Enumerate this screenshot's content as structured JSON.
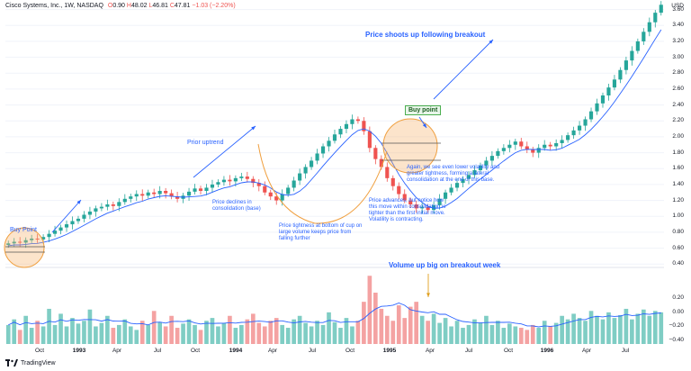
{
  "header": {
    "title": "Cisco Systems, Inc., 1W, NASDAQ",
    "open_label": "O",
    "open": "0.90",
    "high_label": "H",
    "high": "48.02",
    "low_label": "L",
    "low": "46.81",
    "close_label": "C",
    "close": "47.81",
    "change": "−1.03 (−2.20%)"
  },
  "brand": "TradingView",
  "currency": "USD",
  "price_axis": [
    "3.60",
    "3.40",
    "3.20",
    "3.00",
    "2.80",
    "2.60",
    "2.40",
    "2.20",
    "2.00",
    "1.80",
    "1.60",
    "1.40",
    "1.20",
    "1.00",
    "0.80",
    "0.60",
    "0.40"
  ],
  "volume_axis": [
    "0.20",
    "0.00",
    "−0.20",
    "−0.40"
  ],
  "time_axis": [
    {
      "label": "Oct",
      "bold": false
    },
    {
      "label": "1993",
      "bold": true
    },
    {
      "label": "Apr",
      "bold": false
    },
    {
      "label": "Jul",
      "bold": false
    },
    {
      "label": "Oct",
      "bold": false
    },
    {
      "label": "1994",
      "bold": true
    },
    {
      "label": "Apr",
      "bold": false
    },
    {
      "label": "Jul",
      "bold": false
    },
    {
      "label": "Oct",
      "bold": false
    },
    {
      "label": "1995",
      "bold": true
    },
    {
      "label": "Apr",
      "bold": false
    },
    {
      "label": "Jul",
      "bold": false
    },
    {
      "label": "Oct",
      "bold": false
    },
    {
      "label": "1996",
      "bold": true
    },
    {
      "label": "Apr",
      "bold": false
    },
    {
      "label": "Jul",
      "bold": false
    }
  ],
  "annotations": {
    "buy_point_1": "Buy Point",
    "buy_point_2": "Buy point",
    "prior_uptrend": "Prior uptrend",
    "price_declines": "Price declines in consolidation (base)",
    "cup_bottom": "Price tightness at bottom of cup on large volume keeps price from falling further",
    "price_advances": "Price advances, but notice how this move within consolidation is tighter than the first initial move. Volatility is contracting.",
    "again": "Again, we see even lower volatility and greater tightness, forming a lateral consolidation at the end of this base.",
    "shoots_up": "Price shoots up following breakout",
    "volume_up": "Volume up big on breakout week"
  },
  "colors": {
    "up": "#26a69a",
    "down": "#ef5350",
    "vol_up": "#7fcdc4",
    "vol_down": "#f4a2a2",
    "ma": "#2962ff",
    "accent": "#2962ff",
    "circle": "#f7b26b",
    "cup": "#f0a040",
    "arrow_vol": "#e0a020"
  },
  "chart_data": {
    "type": "candlestick",
    "title": "Cisco Systems, Inc., 1W, NASDAQ",
    "ylabel": "USD",
    "ylim": [
      0.38,
      3.72
    ],
    "volume_ylim": [
      -0.45,
      0.6
    ],
    "period_labels": [
      "Oct",
      "1993",
      "Apr",
      "Jul",
      "Oct",
      "1994",
      "Apr",
      "Jul",
      "Oct",
      "1995",
      "Apr",
      "Jul",
      "Oct",
      "1996",
      "Apr",
      "Jul"
    ],
    "close": [
      0.66,
      0.68,
      0.67,
      0.7,
      0.72,
      0.71,
      0.74,
      0.78,
      0.82,
      0.86,
      0.9,
      0.94,
      0.97,
      1.02,
      1.06,
      1.1,
      1.12,
      1.15,
      1.13,
      1.18,
      1.22,
      1.25,
      1.28,
      1.26,
      1.3,
      1.28,
      1.32,
      1.29,
      1.25,
      1.22,
      1.26,
      1.31,
      1.35,
      1.32,
      1.36,
      1.4,
      1.43,
      1.46,
      1.44,
      1.48,
      1.5,
      1.47,
      1.42,
      1.38,
      1.3,
      1.25,
      1.2,
      1.28,
      1.36,
      1.45,
      1.54,
      1.62,
      1.7,
      1.79,
      1.88,
      1.95,
      2.03,
      2.1,
      2.16,
      2.22,
      2.2,
      2.07,
      1.86,
      1.72,
      1.62,
      1.48,
      1.38,
      1.28,
      1.2,
      1.15,
      1.1,
      1.12,
      1.08,
      1.14,
      1.22,
      1.3,
      1.36,
      1.42,
      1.47,
      1.52,
      1.58,
      1.64,
      1.7,
      1.76,
      1.82,
      1.86,
      1.9,
      1.94,
      1.88,
      1.84,
      1.8,
      1.86,
      1.9,
      1.88,
      1.92,
      1.96,
      2.02,
      2.08,
      2.14,
      2.22,
      2.32,
      2.42,
      2.52,
      2.62,
      2.72,
      2.84,
      2.96,
      3.08,
      3.2,
      3.32,
      3.44,
      3.56,
      3.66
    ],
    "volume": [
      -0.18,
      -0.1,
      -0.25,
      -0.05,
      -0.22,
      -0.12,
      -0.2,
      0.05,
      -0.18,
      -0.02,
      -0.2,
      -0.08,
      -0.16,
      -0.12,
      0.04,
      -0.2,
      -0.15,
      -0.05,
      -0.22,
      -0.18,
      -0.1,
      -0.2,
      -0.25,
      -0.12,
      -0.18,
      0.02,
      -0.14,
      -0.2,
      -0.05,
      -0.22,
      -0.16,
      -0.1,
      -0.18,
      -0.25,
      -0.12,
      -0.08,
      -0.2,
      -0.15,
      -0.05,
      -0.22,
      -0.18,
      -0.1,
      -0.02,
      -0.15,
      -0.2,
      -0.12,
      -0.08,
      -0.18,
      -0.22,
      -0.1,
      -0.05,
      -0.15,
      -0.2,
      -0.12,
      -0.18,
      0.0,
      -0.14,
      -0.22,
      -0.08,
      -0.2,
      -0.12,
      0.15,
      0.52,
      0.28,
      0.05,
      -0.05,
      -0.12,
      0.1,
      -0.08,
      0.08,
      0.15,
      -0.05,
      -0.12,
      -0.02,
      -0.15,
      -0.08,
      -0.2,
      -0.12,
      -0.22,
      -0.18,
      -0.1,
      -0.15,
      -0.05,
      -0.18,
      -0.12,
      -0.22,
      -0.16,
      -0.2,
      -0.22,
      -0.25,
      -0.18,
      -0.22,
      -0.12,
      -0.2,
      -0.15,
      -0.05,
      -0.1,
      -0.02,
      -0.08,
      -0.12,
      0.02,
      -0.05,
      -0.1,
      0.0,
      -0.08,
      -0.04,
      0.05,
      -0.1,
      -0.02,
      0.04,
      -0.05,
      0.02,
      0.0
    ]
  }
}
